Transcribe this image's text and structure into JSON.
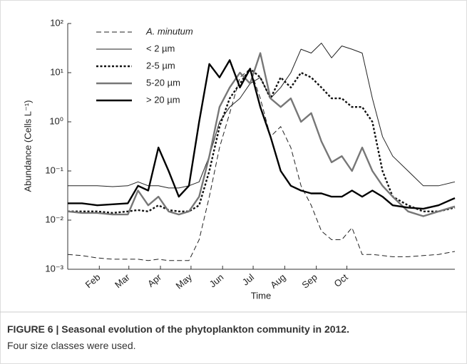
{
  "chart_data": {
    "type": "line",
    "x_label": "Time",
    "y_label": "Abundance (Cells L⁻¹)",
    "caption_bold": "FIGURE 6 | Seasonal evolution of the phytoplankton community in 2012.",
    "caption_text": "Four size classes were used.",
    "log_y": true,
    "legend": "upper left",
    "xlim": [
      1,
      381
    ],
    "xticks": [
      {
        "value": 32,
        "label": "Feb"
      },
      {
        "value": 61,
        "label": "Mar"
      },
      {
        "value": 92,
        "label": "Apr"
      },
      {
        "value": 122,
        "label": "May"
      },
      {
        "value": 153,
        "label": "Jun"
      },
      {
        "value": 183,
        "label": "Jul"
      },
      {
        "value": 214,
        "label": "Aug"
      },
      {
        "value": 245,
        "label": "Sep"
      },
      {
        "value": 275,
        "label": "Oct"
      }
    ],
    "ylim": [
      0.001,
      100
    ],
    "yticks": [
      {
        "value": 0.001,
        "label": "10⁻³"
      },
      {
        "value": 0.01,
        "label": "10⁻²"
      },
      {
        "value": 0.1,
        "label": "10⁻¹"
      },
      {
        "value": 1,
        "label": "10⁰"
      },
      {
        "value": 10,
        "label": "10¹"
      },
      {
        "value": 100,
        "label": "10²"
      }
    ],
    "x": [
      1,
      15,
      30,
      45,
      60,
      70,
      80,
      90,
      100,
      110,
      120,
      130,
      140,
      150,
      160,
      170,
      180,
      190,
      200,
      210,
      220,
      230,
      240,
      250,
      260,
      270,
      280,
      290,
      300,
      310,
      320,
      335,
      350,
      365,
      381
    ],
    "series": [
      {
        "name": "A. minutum",
        "color": "#222222",
        "style": "dashed",
        "weight": "thin",
        "values": [
          0.002,
          0.0019,
          0.0017,
          0.0016,
          0.0016,
          0.0016,
          0.0015,
          0.0016,
          0.0015,
          0.0015,
          0.0015,
          0.004,
          0.03,
          0.3,
          1.5,
          8,
          12,
          3,
          0.5,
          0.8,
          0.3,
          0.05,
          0.02,
          0.006,
          0.004,
          0.004,
          0.007,
          0.002,
          0.002,
          0.0019,
          0.0018,
          0.0018,
          0.0019,
          0.002,
          0.0023
        ]
      },
      {
        "name": "< 2 µm",
        "color": "#222222",
        "style": "solid",
        "weight": "thin",
        "values": [
          0.05,
          0.05,
          0.05,
          0.048,
          0.05,
          0.06,
          0.05,
          0.05,
          0.045,
          0.045,
          0.05,
          0.06,
          0.2,
          1,
          2,
          3,
          6,
          8,
          3,
          5,
          10,
          30,
          25,
          40,
          20,
          35,
          30,
          25,
          3,
          0.5,
          0.2,
          0.1,
          0.05,
          0.05,
          0.06
        ]
      },
      {
        "name": "2-5 µm",
        "color": "#111111",
        "style": "dotted",
        "weight": "thick",
        "values": [
          0.015,
          0.015,
          0.015,
          0.014,
          0.015,
          0.016,
          0.015,
          0.02,
          0.016,
          0.015,
          0.015,
          0.02,
          0.1,
          0.8,
          3,
          6,
          12,
          8,
          3,
          8,
          5,
          10,
          8,
          5,
          3,
          3,
          2,
          2,
          1,
          0.1,
          0.03,
          0.02,
          0.015,
          0.015,
          0.018
        ]
      },
      {
        "name": "5-20 µm",
        "color": "#777777",
        "style": "solid",
        "weight": "thick",
        "values": [
          0.015,
          0.014,
          0.014,
          0.013,
          0.013,
          0.04,
          0.02,
          0.03,
          0.015,
          0.013,
          0.015,
          0.03,
          0.2,
          2,
          5,
          10,
          6,
          25,
          3,
          2,
          3,
          1,
          1.5,
          0.4,
          0.15,
          0.2,
          0.1,
          0.3,
          0.1,
          0.05,
          0.03,
          0.015,
          0.012,
          0.015,
          0.019
        ]
      },
      {
        "name": "> 20 µm",
        "color": "#000000",
        "style": "solid",
        "weight": "thick",
        "values": [
          0.022,
          0.022,
          0.02,
          0.021,
          0.022,
          0.05,
          0.04,
          0.3,
          0.1,
          0.03,
          0.05,
          1,
          15,
          8,
          18,
          5,
          12,
          2,
          0.5,
          0.1,
          0.05,
          0.04,
          0.035,
          0.035,
          0.03,
          0.03,
          0.04,
          0.03,
          0.04,
          0.03,
          0.02,
          0.018,
          0.017,
          0.02,
          0.028
        ]
      }
    ]
  }
}
